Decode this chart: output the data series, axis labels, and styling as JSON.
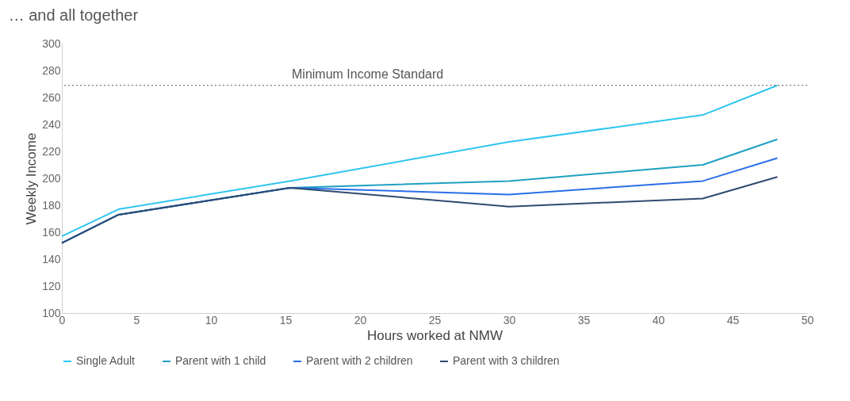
{
  "chart_data": {
    "type": "line",
    "title": "… and all together",
    "xlabel": "Hours worked at NMW",
    "ylabel": "Weekly Income",
    "x": [
      0,
      3.8,
      15.3,
      30,
      43,
      48
    ],
    "series": [
      {
        "name": "Single Adult",
        "color": "#2fc5ef",
        "values": [
          157,
          177,
          198,
          227,
          247,
          269
        ]
      },
      {
        "name": "Parent with 1 child",
        "color": "#1fa0c0",
        "values": [
          152,
          173,
          193,
          198,
          210,
          229
        ]
      },
      {
        "name": "Parent with 2 children",
        "color": "#2a6fe8",
        "values": [
          152,
          173,
          193,
          188,
          198,
          215
        ]
      },
      {
        "name": "Parent with 3 children",
        "color": "#2e4a6e",
        "values": [
          152,
          173,
          193,
          179,
          185,
          201
        ]
      }
    ],
    "xlim": [
      0,
      50
    ],
    "xticks": [
      0,
      5,
      10,
      15,
      20,
      25,
      30,
      35,
      40,
      45,
      50
    ],
    "ylim": [
      100,
      300
    ],
    "yticks": [
      100,
      120,
      140,
      160,
      180,
      200,
      220,
      240,
      260,
      280,
      300
    ],
    "ref_lines": [
      {
        "axis": "y",
        "value": 269,
        "label": "Minimum Income Standard",
        "color": "#555555",
        "line_style": "dotted"
      }
    ],
    "grid": false,
    "legend": "bottom",
    "marker": "none",
    "line_style": "solid"
  }
}
